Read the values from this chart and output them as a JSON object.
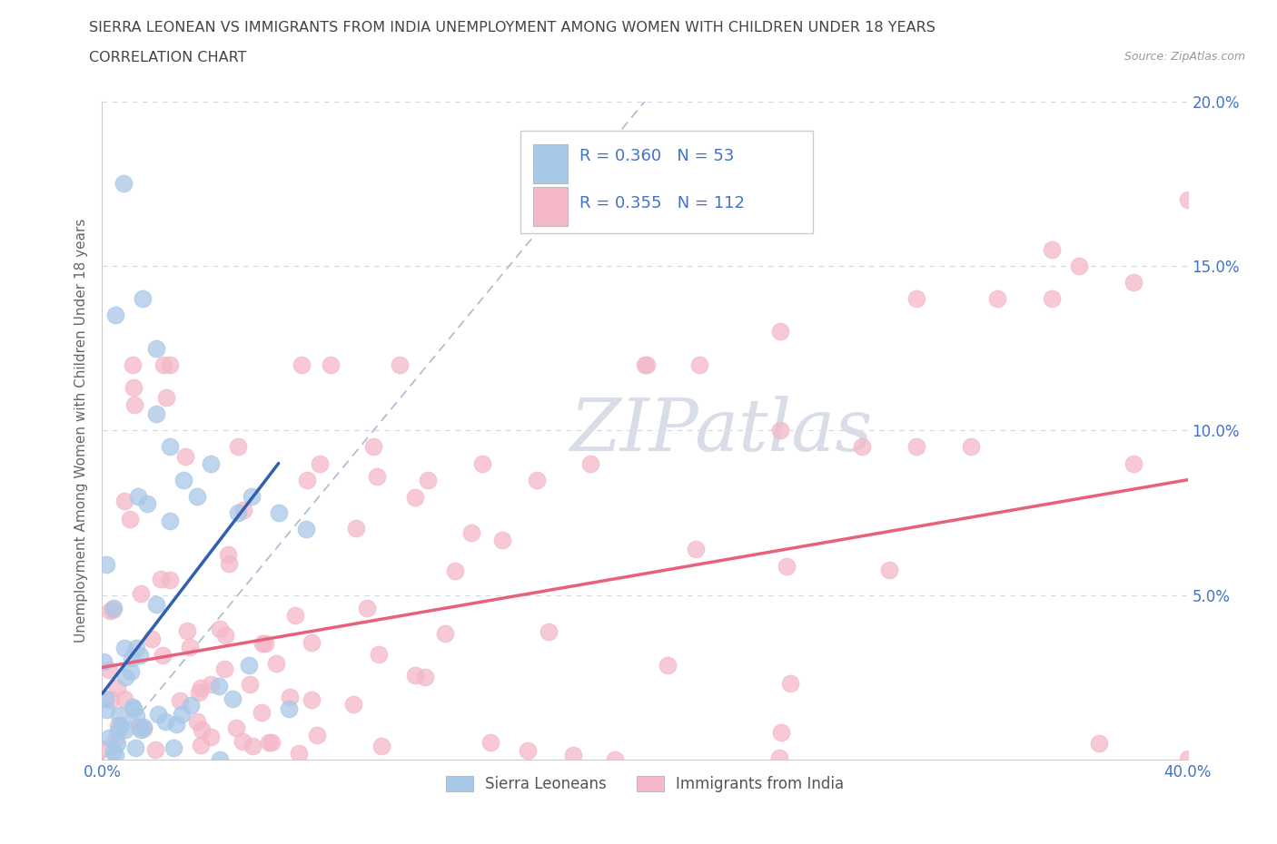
{
  "title_line1": "SIERRA LEONEAN VS IMMIGRANTS FROM INDIA UNEMPLOYMENT AMONG WOMEN WITH CHILDREN UNDER 18 YEARS",
  "title_line2": "CORRELATION CHART",
  "source": "Source: ZipAtlas.com",
  "ylabel": "Unemployment Among Women with Children Under 18 years",
  "xlim": [
    0.0,
    0.4
  ],
  "ylim": [
    0.0,
    0.2
  ],
  "xtick_vals": [
    0.0,
    0.05,
    0.1,
    0.15,
    0.2,
    0.25,
    0.3,
    0.35,
    0.4
  ],
  "xtick_labels": [
    "0.0%",
    "",
    "",
    "",
    "",
    "",
    "",
    "",
    "40.0%"
  ],
  "ytick_vals": [
    0.0,
    0.05,
    0.1,
    0.15,
    0.2
  ],
  "ytick_labels_right": [
    "",
    "5.0%",
    "10.0%",
    "15.0%",
    "20.0%"
  ],
  "sierra_color": "#a8c8e8",
  "india_color": "#f4b8c8",
  "sierra_line_color": "#3060b0",
  "india_line_color": "#e8607a",
  "diag_line_color": "#aabbd0",
  "tick_color": "#4472c4",
  "title_color": "#444444",
  "ylabel_color": "#666666",
  "grid_color": "#d0d8e0",
  "watermark_color": "#d8dde8",
  "legend_R_sierra": "R = 0.360   N = 53",
  "legend_R_india": "R = 0.355   N = 112",
  "legend_label_sierra": "Sierra Leoneans",
  "legend_label_india": "Immigrants from India",
  "sierra_line_x0": 0.0,
  "sierra_line_y0": 0.02,
  "sierra_line_x1": 0.065,
  "sierra_line_y1": 0.09,
  "india_line_x0": 0.0,
  "india_line_y0": 0.028,
  "india_line_x1": 0.4,
  "india_line_y1": 0.085
}
